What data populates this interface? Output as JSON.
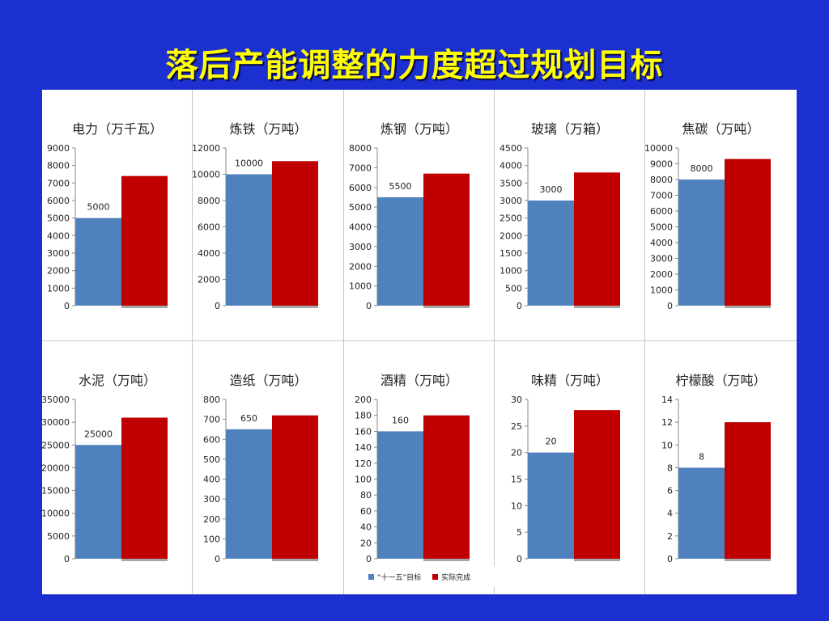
{
  "slide": {
    "title": "落后产能调整的力度超过规划目标"
  },
  "colors": {
    "background": "#1c2fd0",
    "title": "#ffff00",
    "target": "#4f81bd",
    "actual": "#c00000"
  },
  "legend": {
    "target_label": "“十一五”目标",
    "actual_label": "实际完成"
  },
  "chart_data": [
    {
      "type": "bar",
      "title": "电力（万千瓦）",
      "categories": [
        "“十一五”目标",
        "实际完成"
      ],
      "target": 5000,
      "actual": 7400,
      "target_label": "5000",
      "ylim": [
        0,
        9000
      ],
      "ticks": [
        0,
        1000,
        2000,
        3000,
        4000,
        5000,
        6000,
        7000,
        8000,
        9000
      ]
    },
    {
      "type": "bar",
      "title": "炼铁（万吨）",
      "categories": [
        "“十一五”目标",
        "实际完成"
      ],
      "target": 10000,
      "actual": 11000,
      "target_label": "10000",
      "ylim": [
        0,
        12000
      ],
      "ticks": [
        0,
        2000,
        4000,
        6000,
        8000,
        10000,
        12000
      ]
    },
    {
      "type": "bar",
      "title": "炼钢（万吨）",
      "categories": [
        "“十一五”目标",
        "实际完成"
      ],
      "target": 5500,
      "actual": 6700,
      "target_label": "5500",
      "ylim": [
        0,
        8000
      ],
      "ticks": [
        0,
        1000,
        2000,
        3000,
        4000,
        5000,
        6000,
        7000,
        8000
      ]
    },
    {
      "type": "bar",
      "title": "玻璃（万箱）",
      "categories": [
        "“十一五”目标",
        "实际完成"
      ],
      "target": 3000,
      "actual": 3800,
      "target_label": "3000",
      "ylim": [
        0,
        4500
      ],
      "ticks": [
        0,
        500,
        1000,
        1500,
        2000,
        2500,
        3000,
        3500,
        4000,
        4500
      ]
    },
    {
      "type": "bar",
      "title": "焦碳（万吨）",
      "categories": [
        "“十一五”目标",
        "实际完成"
      ],
      "target": 8000,
      "actual": 9300,
      "target_label": "8000",
      "ylim": [
        0,
        10000
      ],
      "ticks": [
        0,
        1000,
        2000,
        3000,
        4000,
        5000,
        6000,
        7000,
        8000,
        9000,
        10000
      ]
    },
    {
      "type": "bar",
      "title": "水泥（万吨）",
      "categories": [
        "“十一五”目标",
        "实际完成"
      ],
      "target": 25000,
      "actual": 31000,
      "target_label": "25000",
      "ylim": [
        0,
        35000
      ],
      "ticks": [
        0,
        5000,
        10000,
        15000,
        20000,
        25000,
        30000,
        35000
      ]
    },
    {
      "type": "bar",
      "title": "造纸（万吨）",
      "categories": [
        "“十一五”目标",
        "实际完成"
      ],
      "target": 650,
      "actual": 720,
      "target_label": "650",
      "ylim": [
        0,
        800
      ],
      "ticks": [
        0,
        100,
        200,
        300,
        400,
        500,
        600,
        700,
        800
      ]
    },
    {
      "type": "bar",
      "title": "酒精（万吨）",
      "categories": [
        "“十一五”目标",
        "实际完成"
      ],
      "target": 160,
      "actual": 180,
      "target_label": "160",
      "ylim": [
        0,
        200
      ],
      "ticks": [
        0,
        20,
        40,
        60,
        80,
        100,
        120,
        140,
        160,
        180,
        200
      ]
    },
    {
      "type": "bar",
      "title": "味精（万吨）",
      "categories": [
        "“十一五”目标",
        "实际完成"
      ],
      "target": 20,
      "actual": 28,
      "target_label": "20",
      "ylim": [
        0,
        30
      ],
      "ticks": [
        0,
        5,
        10,
        15,
        20,
        25,
        30
      ]
    },
    {
      "type": "bar",
      "title": "柠檬酸（万吨）",
      "categories": [
        "“十一五”目标",
        "实际完成"
      ],
      "target": 8,
      "actual": 12,
      "target_label": "8",
      "ylim": [
        0,
        14
      ],
      "ticks": [
        0,
        2,
        4,
        6,
        8,
        10,
        12,
        14
      ]
    }
  ]
}
